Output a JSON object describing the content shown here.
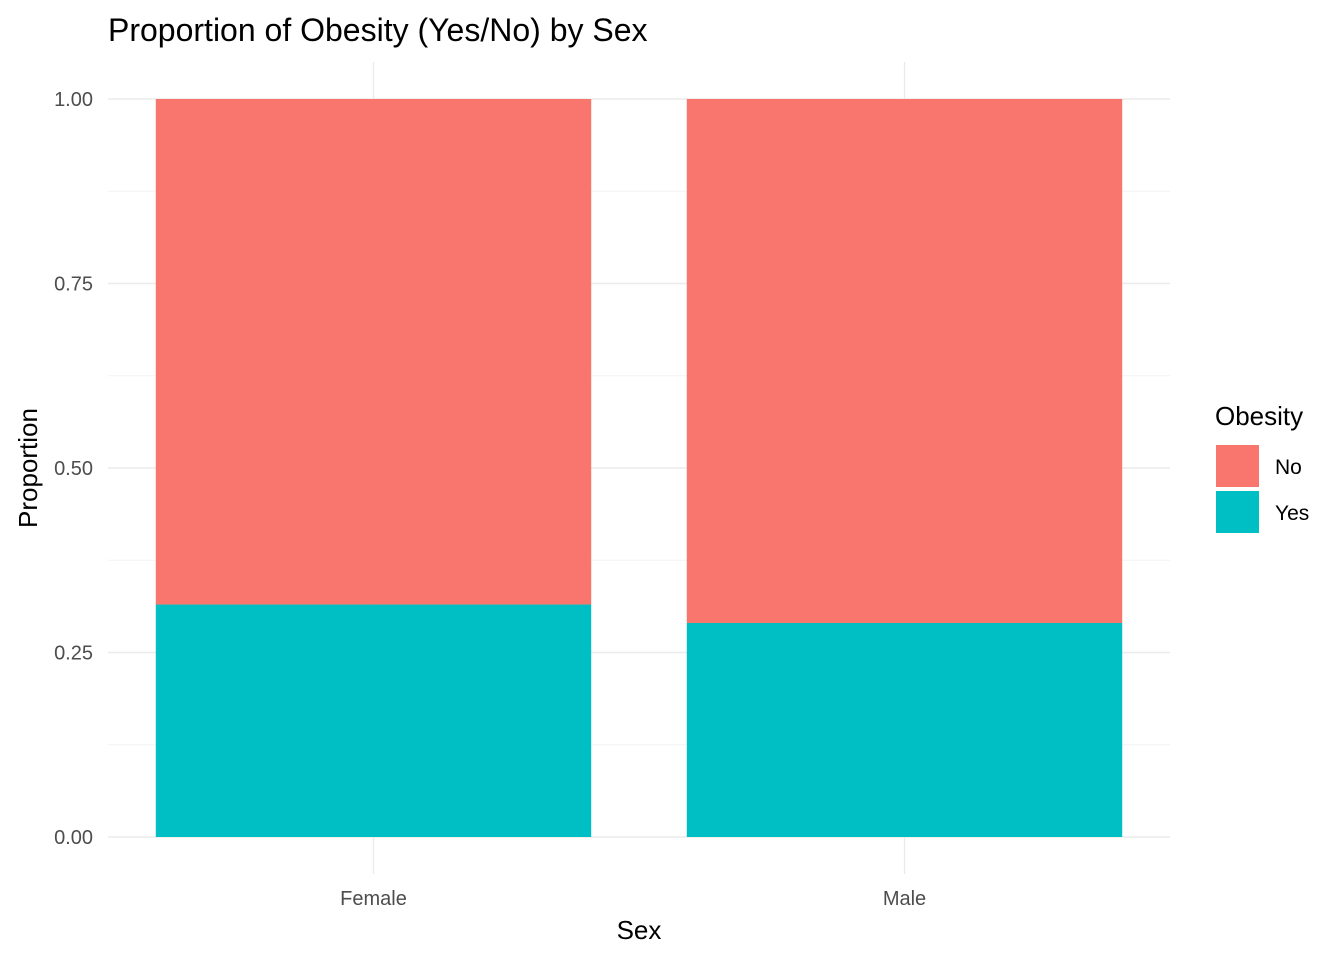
{
  "chart_data": {
    "type": "bar",
    "stacked": true,
    "title": "Proportion of Obesity (Yes/No) by Sex",
    "xlabel": "Sex",
    "ylabel": "Proportion",
    "categories": [
      "Female",
      "Male"
    ],
    "series": [
      {
        "name": "No",
        "values": [
          0.685,
          0.71
        ],
        "color": "#F8766D"
      },
      {
        "name": "Yes",
        "values": [
          0.315,
          0.29
        ],
        "color": "#00BFC4"
      }
    ],
    "ylim": [
      0,
      1
    ],
    "yticks": [
      0,
      0.25,
      0.5,
      0.75,
      1
    ],
    "ytick_labels": [
      "0.00",
      "0.25",
      "0.50",
      "0.75",
      "1.00"
    ],
    "grid": true,
    "legend": {
      "title": "Obesity",
      "position": "right",
      "entries": [
        "No",
        "Yes"
      ]
    }
  }
}
